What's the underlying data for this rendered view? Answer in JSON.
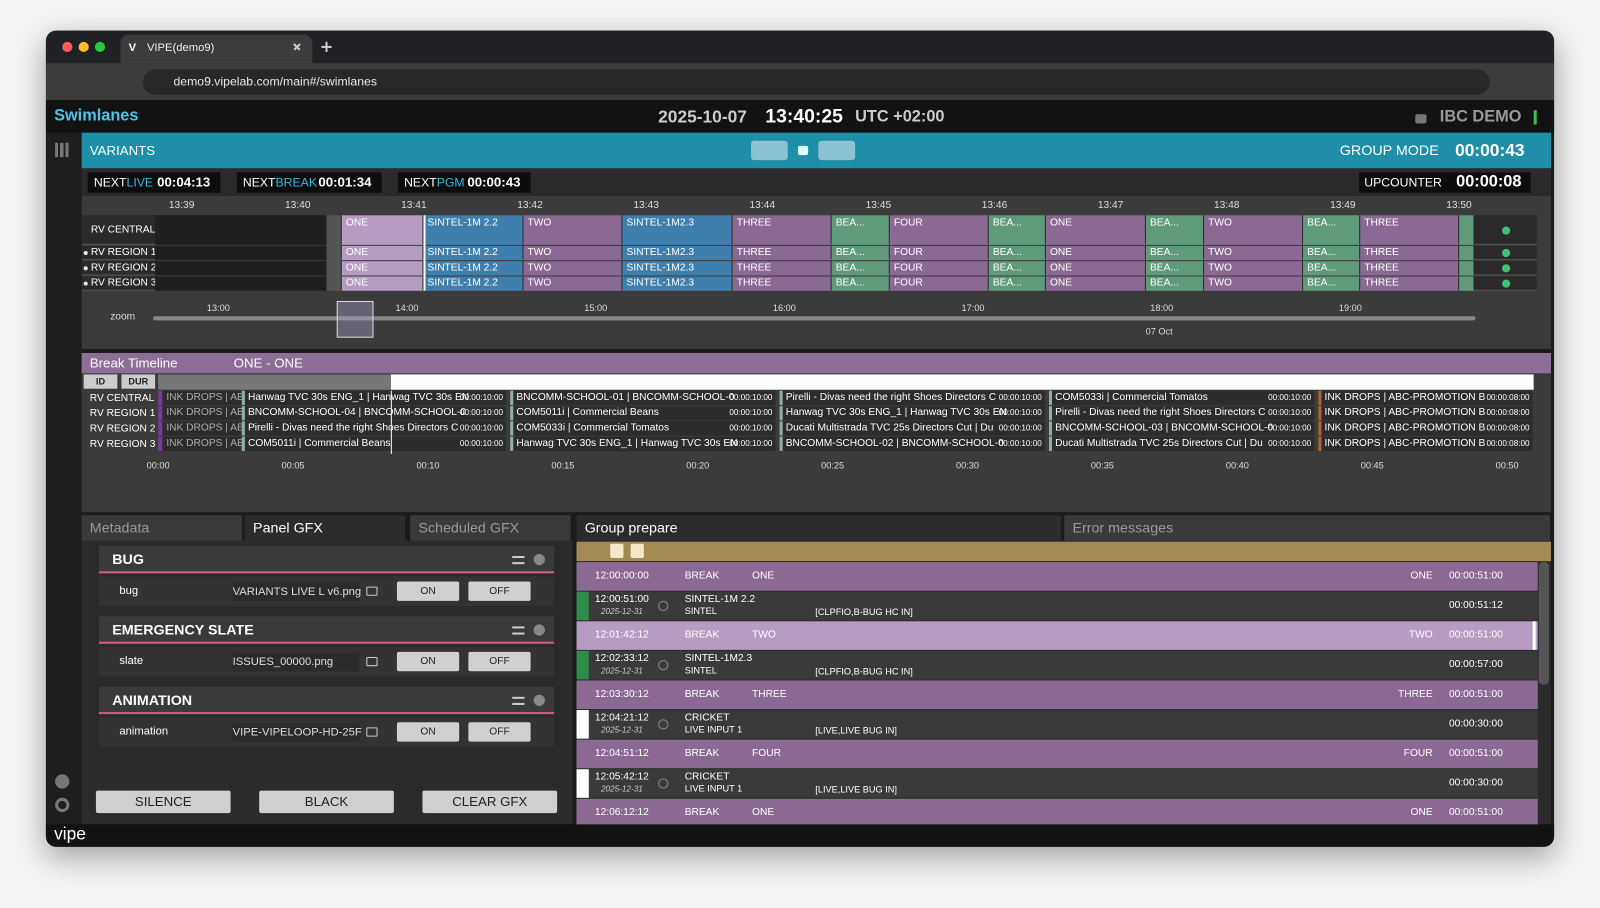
{
  "browser": {
    "tab_icon": "V",
    "tab_title": "VIPE(demo9)",
    "url": "demo9.vipelab.com/main#/swimlanes"
  },
  "header": {
    "title": "Swimlanes",
    "date": "2025-10-07",
    "time": "13:40:25",
    "timezone": "UTC +02:00",
    "account": "IBC DEMO"
  },
  "variants": {
    "title": "VARIANTS",
    "mode": "GROUP MODE",
    "countdown": "00:00:43"
  },
  "counters": [
    {
      "prefix": "NEXT",
      "kind": "LIVE",
      "time": "00:04:13"
    },
    {
      "prefix": "NEXT",
      "kind": "BREAK",
      "time": "00:01:34"
    },
    {
      "prefix": "NEXT",
      "kind": "PGM",
      "time": "00:00:43"
    }
  ],
  "upcounter": {
    "label": "UPCOUNTER",
    "time": "00:00:08"
  },
  "swimlanes": {
    "times": [
      "13:39",
      "13:40",
      "13:41",
      "13:42",
      "13:43",
      "13:44",
      "13:45",
      "13:46",
      "13:47",
      "13:48",
      "13:49",
      "13:50"
    ],
    "lanes": [
      "RV CENTRAL",
      "RV REGION 1",
      "RV REGION 2",
      "RV REGION 3"
    ],
    "segments": [
      {
        "label": "ONE",
        "color": "#b79cc2"
      },
      {
        "label": "SINTEL-1M 2.2",
        "color": "#3f7fae"
      },
      {
        "label": "TWO",
        "color": "#8a6a93"
      },
      {
        "label": "SINTEL-1M2.3",
        "color": "#3f7fae"
      },
      {
        "label": "THREE",
        "color": "#8a6a93"
      },
      {
        "label": "BEA...",
        "color": "#5f9a7a"
      },
      {
        "label": "FOUR",
        "color": "#8a6a93"
      },
      {
        "label": "BEA...",
        "color": "#5f9a7a"
      },
      {
        "label": "ONE",
        "color": "#8a6a93"
      },
      {
        "label": "BEA...",
        "color": "#5f9a7a"
      },
      {
        "label": "TWO",
        "color": "#8a6a93"
      },
      {
        "label": "BEA...",
        "color": "#5f9a7a"
      },
      {
        "label": "THREE",
        "color": "#8a6a93"
      }
    ]
  },
  "zoom": {
    "label": "zoom",
    "times": [
      "13:00",
      "14:00",
      "15:00",
      "16:00",
      "17:00",
      "18:00",
      "19:00"
    ],
    "date": "07 Oct"
  },
  "break_timeline": {
    "title": "Break Timeline",
    "subtitle": "ONE - ONE",
    "columns": [
      "ID",
      "DUR"
    ],
    "rows": [
      {
        "lane": "RV CENTRAL",
        "lead": "INK DROPS | AB",
        "items": [
          {
            "title": "Hanwag TVC 30s ENG_1 | Hanwag TVC 30s EN",
            "duration": "00:00:10:00"
          },
          {
            "title": "BNCOMM-SCHOOL-01 | BNCOMM-SCHOOL-0",
            "duration": "00:00:10:00"
          },
          {
            "title": "Pirelli - Divas need the right Shoes Directors C",
            "duration": "00:00:10:00"
          },
          {
            "title": "COM5033i | Commercial Tomatos",
            "duration": "00:00:10:00"
          },
          {
            "title": "INK DROPS | ABC-PROMOTION B",
            "duration": "00:00:08:00"
          }
        ]
      },
      {
        "lane": "RV REGION 1",
        "lead": "INK DROPS | AB",
        "items": [
          {
            "title": "BNCOMM-SCHOOL-04 | BNCOMM-SCHOOL-0",
            "duration": "00:00:10:00"
          },
          {
            "title": "COM5011i | Commercial Beans",
            "duration": "00:00:10:00"
          },
          {
            "title": "Hanwag TVC 30s ENG_1 | Hanwag TVC 30s EN",
            "duration": "00:00:10:00"
          },
          {
            "title": "Pirelli - Divas need the right Shoes Directors C",
            "duration": "00:00:10:00"
          },
          {
            "title": "INK DROPS | ABC-PROMOTION B",
            "duration": "00:00:08:00"
          }
        ]
      },
      {
        "lane": "RV REGION 2",
        "lead": "INK DROPS | AB",
        "items": [
          {
            "title": "Pirelli - Divas need the right Shoes Directors C",
            "duration": "00:00:10:00"
          },
          {
            "title": "COM5033i | Commercial Tomatos",
            "duration": "00:00:10:00"
          },
          {
            "title": "Ducati Multistrada TVC 25s Directors Cut | Du",
            "duration": "00:00:10:00"
          },
          {
            "title": "BNCOMM-SCHOOL-03 | BNCOMM-SCHOOL-0",
            "duration": "00:00:10:00"
          },
          {
            "title": "INK DROPS | ABC-PROMOTION B",
            "duration": "00:00:08:00"
          }
        ]
      },
      {
        "lane": "RV REGION 3",
        "lead": "INK DROPS | AB",
        "items": [
          {
            "title": "COM5011i | Commercial Beans",
            "duration": "00:00:10:00"
          },
          {
            "title": "Hanwag TVC 30s ENG_1 | Hanwag TVC 30s EN",
            "duration": "00:00:10:00"
          },
          {
            "title": "BNCOMM-SCHOOL-02 | BNCOMM-SCHOOL-0",
            "duration": "00:00:10:00"
          },
          {
            "title": "Ducati Multistrada TVC 25s Directors Cut | Du",
            "duration": "00:00:10:00"
          },
          {
            "title": "INK DROPS | ABC-PROMOTION B",
            "duration": "00:00:08:00"
          }
        ]
      }
    ],
    "axis": [
      "00:00",
      "00:05",
      "00:10",
      "00:15",
      "00:20",
      "00:25",
      "00:30",
      "00:35",
      "00:40",
      "00:45",
      "00:50"
    ]
  },
  "gfx_panel": {
    "tabs": [
      "Metadata",
      "Panel GFX",
      "Scheduled GFX"
    ],
    "sections": [
      {
        "title": "BUG",
        "item": "bug",
        "file": "VARIANTS LIVE L v6.png",
        "on": "ON",
        "off": "OFF"
      },
      {
        "title": "EMERGENCY SLATE",
        "item": "slate",
        "file": "ISSUES_00000.png",
        "on": "ON",
        "off": "OFF"
      },
      {
        "title": "ANIMATION",
        "item": "animation",
        "file": "VIPE-VIPELOOP-HD-25F",
        "on": "ON",
        "off": "OFF"
      }
    ],
    "buttons": [
      "SILENCE",
      "BLACK",
      "CLEAR GFX"
    ]
  },
  "prepare": {
    "tabs": [
      "Group prepare",
      "Error messages"
    ],
    "rows": [
      {
        "time": "12:00:00:00",
        "type": "BREAK",
        "name": "ONE",
        "right": "ONE",
        "duration": "00:00:51:00"
      },
      {
        "time": "12:00:51:00",
        "date": "2025-12-31",
        "name": "SINTEL-1M 2.2",
        "sub": "SINTEL",
        "tags": "[CLPFIO,B-BUG HC IN]",
        "duration": "00:00:51:12",
        "marker": "#2e8b4a"
      },
      {
        "time": "12:01:42:12",
        "type": "BREAK",
        "name": "TWO",
        "right": "TWO",
        "duration": "00:00:51:00",
        "selected": true
      },
      {
        "time": "12:02:33:12",
        "date": "2025-12-31",
        "name": "SINTEL-1M2.3",
        "sub": "SINTEL",
        "tags": "[CLPFIO,B-BUG HC IN]",
        "duration": "00:00:57:00",
        "marker": "#2e8b4a"
      },
      {
        "time": "12:03:30:12",
        "type": "BREAK",
        "name": "THREE",
        "right": "THREE",
        "duration": "00:00:51:00"
      },
      {
        "time": "12:04:21:12",
        "date": "2025-12-31",
        "name": "CRICKET",
        "sub": "LIVE INPUT 1",
        "tags": "[LIVE,LIVE BUG IN]",
        "duration": "00:00:30:00",
        "marker": "#ffffff"
      },
      {
        "time": "12:04:51:12",
        "type": "BREAK",
        "name": "FOUR",
        "right": "FOUR",
        "duration": "00:00:51:00"
      },
      {
        "time": "12:05:42:12",
        "date": "2025-12-31",
        "name": "CRICKET",
        "sub": "LIVE INPUT 1",
        "tags": "[LIVE,LIVE BUG IN]",
        "duration": "00:00:30:00",
        "marker": "#ffffff"
      },
      {
        "time": "12:06:12:12",
        "type": "BREAK",
        "name": "ONE",
        "right": "ONE",
        "duration": "00:00:51:00"
      }
    ]
  },
  "footer": {
    "logo": "vipe"
  }
}
